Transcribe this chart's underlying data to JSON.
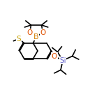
{
  "background": "#ffffff",
  "bond_color": "#000000",
  "atom_label_colors": {
    "B": "#d4820a",
    "O": "#e05000",
    "S": "#c8a000",
    "Si": "#6666cc",
    "C": "#000000"
  },
  "linewidth": 1.2,
  "fontsize": 7.5
}
